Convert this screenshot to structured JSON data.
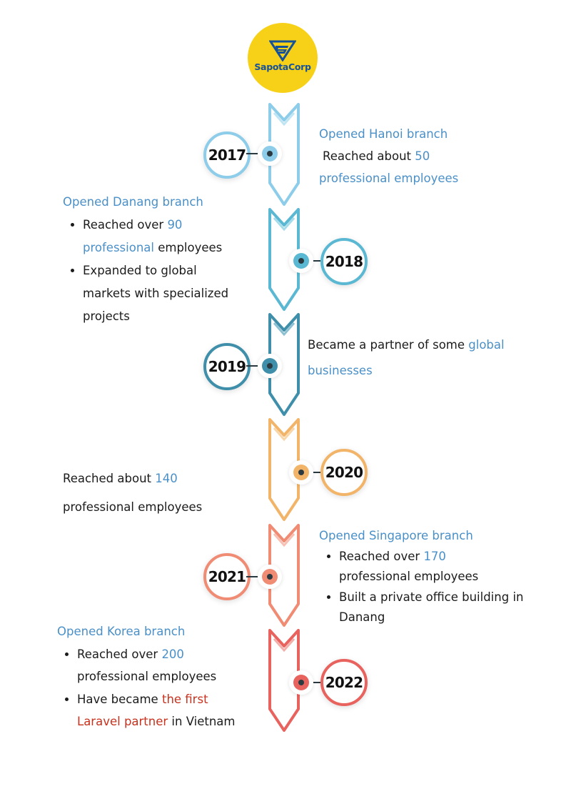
{
  "logo": {
    "text": "SapotaCorp"
  },
  "colors": {
    "y2017": "#8dcdea",
    "y2018": "#5ab8d3",
    "y2019": "#3f8faa",
    "y2020": "#f2b468",
    "y2021": "#f08b74",
    "y2022": "#e8625e",
    "heading": "#4a90c8",
    "highlight_red": "#c8321e"
  },
  "timeline": [
    {
      "year": "2017",
      "heading": "Opened Hanoi branch",
      "line": {
        "pre": "Reached about ",
        "hl": "50",
        "post": ""
      },
      "line2": "professional employees"
    },
    {
      "year": "2018",
      "heading": "Opened Danang branch",
      "bullets": [
        {
          "pre": "Reached over ",
          "hl": "90",
          "hl2": "professional",
          "post": " employees"
        },
        {
          "text": "Expanded to global markets with specialized projects"
        }
      ]
    },
    {
      "year": "2019",
      "line": {
        "pre": "Became a partner of some ",
        "hl": "global",
        "hl2": "businesses"
      }
    },
    {
      "year": "2020",
      "line": {
        "pre": "Reached about ",
        "hl": "140"
      },
      "line2": "professional employees"
    },
    {
      "year": "2021",
      "heading": "Opened Singapore branch",
      "bullets": [
        {
          "pre": "Reached over ",
          "hl": "170",
          "post": "professional employees"
        },
        {
          "text": "Built a private office building in Danang"
        }
      ]
    },
    {
      "year": "2022",
      "heading": "Opened Korea branch",
      "bullets": [
        {
          "pre": "Reached over ",
          "hl": "200",
          "post": "professional employees"
        },
        {
          "pre": "Have became ",
          "hl": "the first",
          "hl2": "Laravel partner",
          "post": " in Vietnam"
        }
      ]
    }
  ]
}
